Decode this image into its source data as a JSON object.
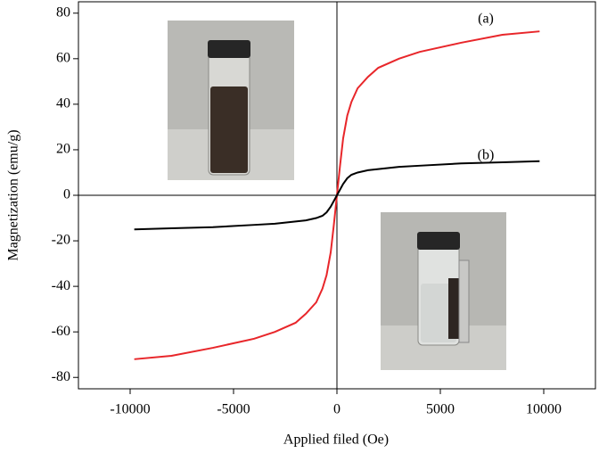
{
  "chart_data": {
    "type": "line",
    "x_label": "Applied filed (Oe)",
    "y_label": "Magnetization (emu/g)",
    "x": [
      -9800,
      -8000,
      -6000,
      -4000,
      -3000,
      -2000,
      -1500,
      -1000,
      -700,
      -500,
      -300,
      -150,
      0,
      150,
      300,
      500,
      700,
      1000,
      1500,
      2000,
      3000,
      4000,
      6000,
      8000,
      9800
    ],
    "series": [
      {
        "name": "(a)",
        "color": "#e8262a",
        "values": [
          -72,
          -70.5,
          -67,
          -63,
          -60,
          -56,
          -52,
          -47,
          -41,
          -35,
          -25,
          -13,
          0,
          13,
          25,
          35,
          41,
          47,
          52,
          56,
          60,
          63,
          67,
          70.5,
          72
        ]
      },
      {
        "name": "(b)",
        "color": "#000000",
        "values": [
          -15,
          -14.5,
          -14,
          -13,
          -12.5,
          -11.5,
          -11,
          -10,
          -9,
          -7.5,
          -5,
          -2.5,
          0,
          2.5,
          5,
          7.5,
          9,
          10,
          11,
          11.5,
          12.5,
          13,
          14,
          14.5,
          15
        ]
      }
    ],
    "xlim": [
      -12500,
      12500
    ],
    "ylim": [
      -85,
      85
    ],
    "xticks": [
      -10000,
      -5000,
      0,
      5000,
      10000
    ],
    "yticks": [
      -80,
      -60,
      -40,
      -20,
      0,
      20,
      40,
      60,
      80
    ]
  }
}
